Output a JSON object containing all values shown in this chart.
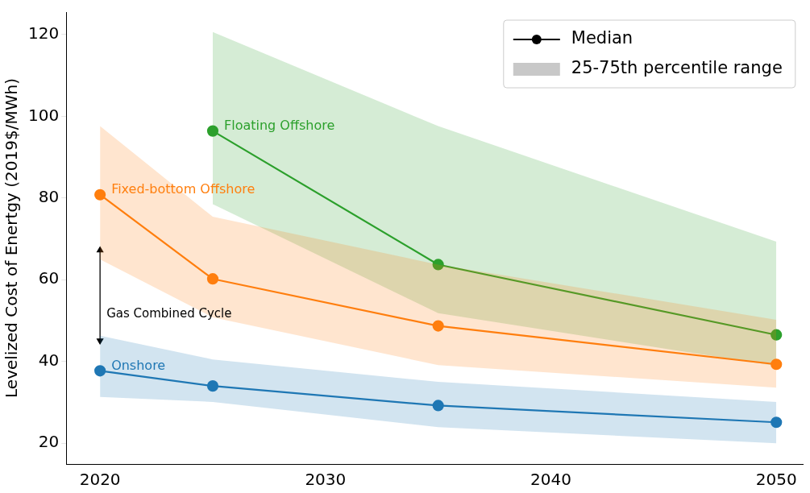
{
  "chart_data": {
    "type": "line",
    "ylabel": "Levelized Cost of Enertgy (2019$/MWh)",
    "x": [
      2020,
      2025,
      2035,
      2050
    ],
    "series": [
      {
        "name": "Onshore",
        "color": "#1f77b4",
        "values": [
          37.7,
          34.0,
          29.2,
          25.1
        ],
        "lower": [
          31.3,
          30.1,
          23.9,
          20.0
        ],
        "upper": [
          46.3,
          40.5,
          35.0,
          30.1
        ]
      },
      {
        "name": "Fixed-bottom Offshore",
        "color": "#ff7f0e",
        "values": [
          80.8,
          60.2,
          48.7,
          39.3
        ],
        "lower": [
          65.0,
          50.8,
          39.1,
          33.6
        ],
        "upper": [
          97.6,
          75.4,
          63.7,
          50.2
        ]
      },
      {
        "name": "Floating Offshore",
        "color": "#2ca02c",
        "values": [
          null,
          96.4,
          63.7,
          46.5
        ],
        "lower": [
          null,
          78.5,
          51.8,
          38.9
        ],
        "upper": [
          null,
          120.6,
          97.6,
          69.3
        ]
      },
      {
        "type": "line",
        "x": [
          2020,
          2020
        ],
        "color": "#000000",
        "values": [
          45.1,
          67.2
        ],
        "marker": "triangle"
      },
      {
        "name": "Median",
        "color": "#000000",
        "values": [
          null,
          null,
          null,
          null
        ]
      },
      {
        "name": "25-75th percentile range",
        "type": "area",
        "color": "#c8c8c8",
        "values": [
          null,
          null,
          null,
          null
        ]
      }
    ],
    "annotations": [
      {
        "text": "Gas Combined Cycle",
        "x": 2020,
        "y": 51.6
      }
    ],
    "xlim": [
      2018.5,
      2051.2
    ],
    "xticks": [
      2020,
      2030,
      2040,
      2050
    ],
    "ylim": [
      14.9,
      125.5
    ],
    "yticks": [
      20,
      40,
      60,
      80,
      100,
      120
    ],
    "grid": false,
    "legend": "top right",
    "marker": "circle",
    "line_style": "solid"
  }
}
